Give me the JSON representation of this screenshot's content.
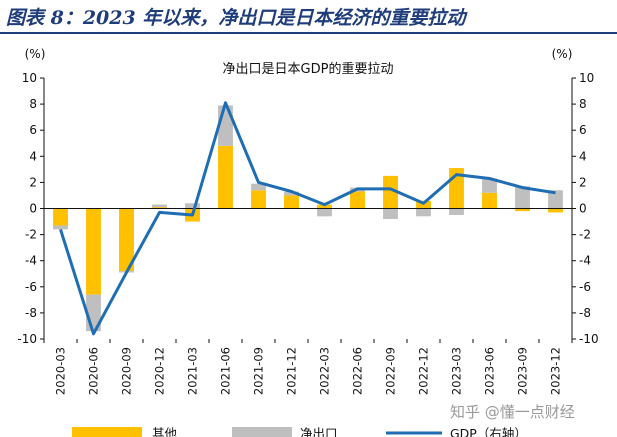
{
  "header": {
    "title": "图表 8：2023 年以来，净出口是日本经济的重要拉动"
  },
  "watermark": "知乎 @懂一点财经",
  "chart_data": {
    "type": "bar",
    "title": "净出口是日本GDP的重要拉动",
    "left_unit": "(%)",
    "right_unit": "(%)",
    "ylim": [
      -10,
      10
    ],
    "yticks": [
      -10,
      -8,
      -6,
      -4,
      -2,
      0,
      2,
      4,
      6,
      8,
      10
    ],
    "categories": [
      "2020-03",
      "2020-06",
      "2020-09",
      "2020-12",
      "2021-03",
      "2021-06",
      "2021-09",
      "2021-12",
      "2022-03",
      "2022-06",
      "2022-09",
      "2022-12",
      "2023-03",
      "2023-06",
      "2023-09",
      "2023-12"
    ],
    "series": [
      {
        "name": "其他",
        "kind": "bar",
        "color": "#FFC000",
        "values": [
          -1.3,
          -6.6,
          -4.8,
          0.1,
          -1.0,
          4.8,
          1.4,
          1.0,
          0.3,
          1.3,
          2.5,
          0.6,
          3.1,
          1.2,
          -0.2,
          -0.3
        ]
      },
      {
        "name": "净出口",
        "kind": "bar",
        "color": "#BFBFBF",
        "values": [
          -0.3,
          -2.8,
          -0.1,
          0.2,
          0.4,
          3.1,
          0.5,
          0.3,
          -0.6,
          0.3,
          -0.8,
          -0.6,
          -0.5,
          1.1,
          1.7,
          1.4
        ]
      },
      {
        "name": "GDP（右轴）",
        "kind": "line",
        "axis": "right",
        "color": "#1F6EB4",
        "values": [
          -1.6,
          -9.6,
          -4.9,
          -0.3,
          -0.5,
          8.1,
          2.0,
          1.3,
          0.3,
          1.5,
          1.5,
          0.4,
          2.6,
          2.3,
          1.6,
          1.2
        ]
      }
    ],
    "grid": false,
    "legend_position": "bottom"
  }
}
